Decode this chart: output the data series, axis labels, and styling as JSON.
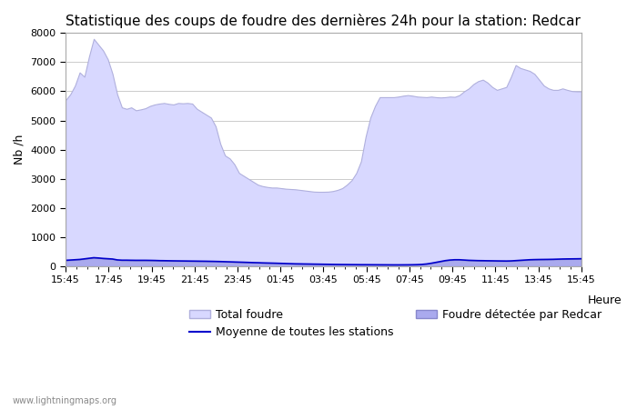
{
  "title": "Statistique des coups de foudre des dernières 24h pour la station: Redcar",
  "ylabel": "Nb /h",
  "xlabel": "Heure",
  "watermark": "www.lightningmaps.org",
  "x_labels": [
    "15:45",
    "17:45",
    "19:45",
    "21:45",
    "23:45",
    "01:45",
    "03:45",
    "05:45",
    "07:45",
    "09:45",
    "11:45",
    "13:45",
    "15:45"
  ],
  "ylim": [
    0,
    8000
  ],
  "yticks": [
    0,
    1000,
    2000,
    3000,
    4000,
    5000,
    6000,
    7000,
    8000
  ],
  "total_foudre_color": "#d8d8ff",
  "total_foudre_edge": "#b0b0dd",
  "redcar_color": "#aaaaee",
  "redcar_edge": "#8888cc",
  "moyenne_color": "#0000cc",
  "background_color": "#ffffff",
  "grid_color": "#cccccc",
  "title_fontsize": 11,
  "axis_fontsize": 9,
  "tick_fontsize": 8,
  "legend": {
    "total_foudre": "Total foudre",
    "moyenne": "Moyenne de toutes les stations",
    "redcar": "Foudre détectée par Redcar"
  },
  "total_foudre_y": [
    5700,
    5900,
    6200,
    6650,
    6500,
    7200,
    7800,
    7600,
    7400,
    7100,
    6600,
    5900,
    5450,
    5400,
    5450,
    5350,
    5380,
    5420,
    5500,
    5550,
    5580,
    5600,
    5570,
    5550,
    5600,
    5590,
    5600,
    5580,
    5400,
    5300,
    5200,
    5100,
    4800,
    4200,
    3800,
    3700,
    3500,
    3200,
    3100,
    3000,
    2900,
    2800,
    2750,
    2720,
    2700,
    2700,
    2680,
    2660,
    2650,
    2640,
    2620,
    2600,
    2580,
    2560,
    2555,
    2555,
    2560,
    2580,
    2620,
    2680,
    2800,
    2950,
    3200,
    3600,
    4450,
    5100,
    5500,
    5800,
    5800,
    5800,
    5800,
    5820,
    5850,
    5870,
    5850,
    5820,
    5810,
    5800,
    5820,
    5800,
    5790,
    5800,
    5820,
    5810,
    5870,
    6000,
    6100,
    6250,
    6350,
    6400,
    6300,
    6150,
    6050,
    6100,
    6150,
    6500,
    6900,
    6800,
    6750,
    6700,
    6600,
    6400,
    6200,
    6100,
    6050,
    6050,
    6100,
    6050,
    6010,
    6000,
    6000
  ],
  "redcar_y": [
    200,
    210,
    220,
    230,
    250,
    270,
    290,
    280,
    265,
    255,
    245,
    215,
    205,
    205,
    202,
    200,
    200,
    200,
    198,
    195,
    190,
    188,
    185,
    182,
    180,
    178,
    176,
    174,
    172,
    170,
    168,
    165,
    162,
    158,
    153,
    148,
    143,
    138,
    133,
    128,
    122,
    118,
    112,
    108,
    104,
    100,
    95,
    90,
    85,
    80,
    78,
    75,
    73,
    70,
    68,
    65,
    63,
    60,
    58,
    56,
    55,
    53,
    52,
    50,
    50,
    49,
    48,
    47,
    46,
    45,
    44,
    44,
    45,
    46,
    48,
    52,
    60,
    75,
    100,
    130,
    160,
    190,
    210,
    220,
    220,
    210,
    200,
    195,
    190,
    188,
    185,
    183,
    180,
    178,
    176,
    180,
    190,
    200,
    210,
    220,
    225,
    228,
    230,
    232,
    235,
    240,
    245,
    248,
    250,
    252,
    255
  ],
  "moyenne_y": [
    205,
    215,
    225,
    235,
    255,
    275,
    295,
    285,
    270,
    260,
    250,
    220,
    210,
    210,
    207,
    205,
    205,
    205,
    203,
    200,
    195,
    193,
    190,
    187,
    185,
    183,
    181,
    179,
    177,
    175,
    173,
    170,
    167,
    163,
    158,
    153,
    148,
    143,
    138,
    133,
    127,
    123,
    117,
    113,
    109,
    105,
    100,
    95,
    90,
    85,
    83,
    80,
    78,
    75,
    73,
    70,
    68,
    65,
    63,
    61,
    60,
    58,
    57,
    55,
    55,
    54,
    53,
    52,
    51,
    50,
    49,
    49,
    50,
    51,
    53,
    57,
    65,
    80,
    105,
    135,
    165,
    195,
    215,
    225,
    225,
    215,
    205,
    200,
    195,
    193,
    190,
    188,
    185,
    183,
    181,
    185,
    195,
    205,
    215,
    225,
    230,
    233,
    235,
    237,
    240,
    245,
    250,
    253,
    255,
    257,
    260
  ]
}
